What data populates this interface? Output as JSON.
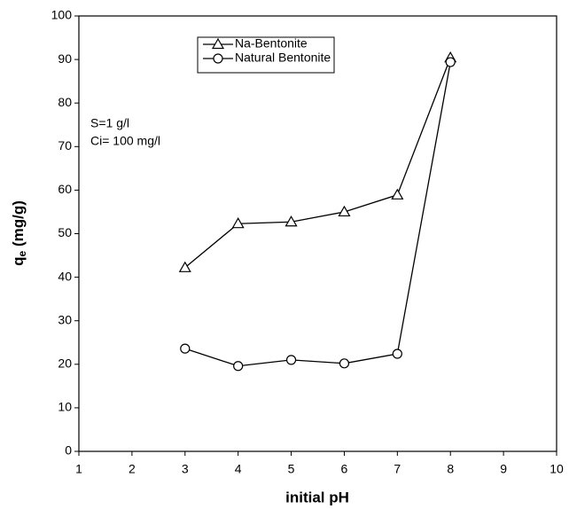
{
  "chart_data": {
    "type": "line",
    "xlabel": "initial pH",
    "ylabel": {
      "main": "q",
      "sub": "e",
      "unit": " (mg/g)"
    },
    "annotations": [
      "S=1 g/l",
      "Ci= 100 mg/l"
    ],
    "x": [
      3,
      4,
      5,
      6,
      7,
      8
    ],
    "series": [
      {
        "name": "Na-Bentonite",
        "color": "#000000",
        "marker": "triangle",
        "values": [
          42.2,
          52.3,
          52.7,
          55.0,
          58.9,
          90.4
        ]
      },
      {
        "name": "Natural Bentonite",
        "color": "#000000",
        "marker": "circle",
        "values": [
          23.6,
          19.6,
          21.0,
          20.2,
          22.4,
          89.4
        ]
      }
    ],
    "xlim": [
      1,
      10
    ],
    "xticks": [
      1,
      2,
      3,
      4,
      5,
      6,
      7,
      8,
      9,
      10
    ],
    "ylim": [
      0,
      100
    ],
    "yticks": [
      0,
      10,
      20,
      30,
      40,
      50,
      60,
      70,
      80,
      90,
      100
    ],
    "grid": false,
    "legend": "top-center"
  }
}
